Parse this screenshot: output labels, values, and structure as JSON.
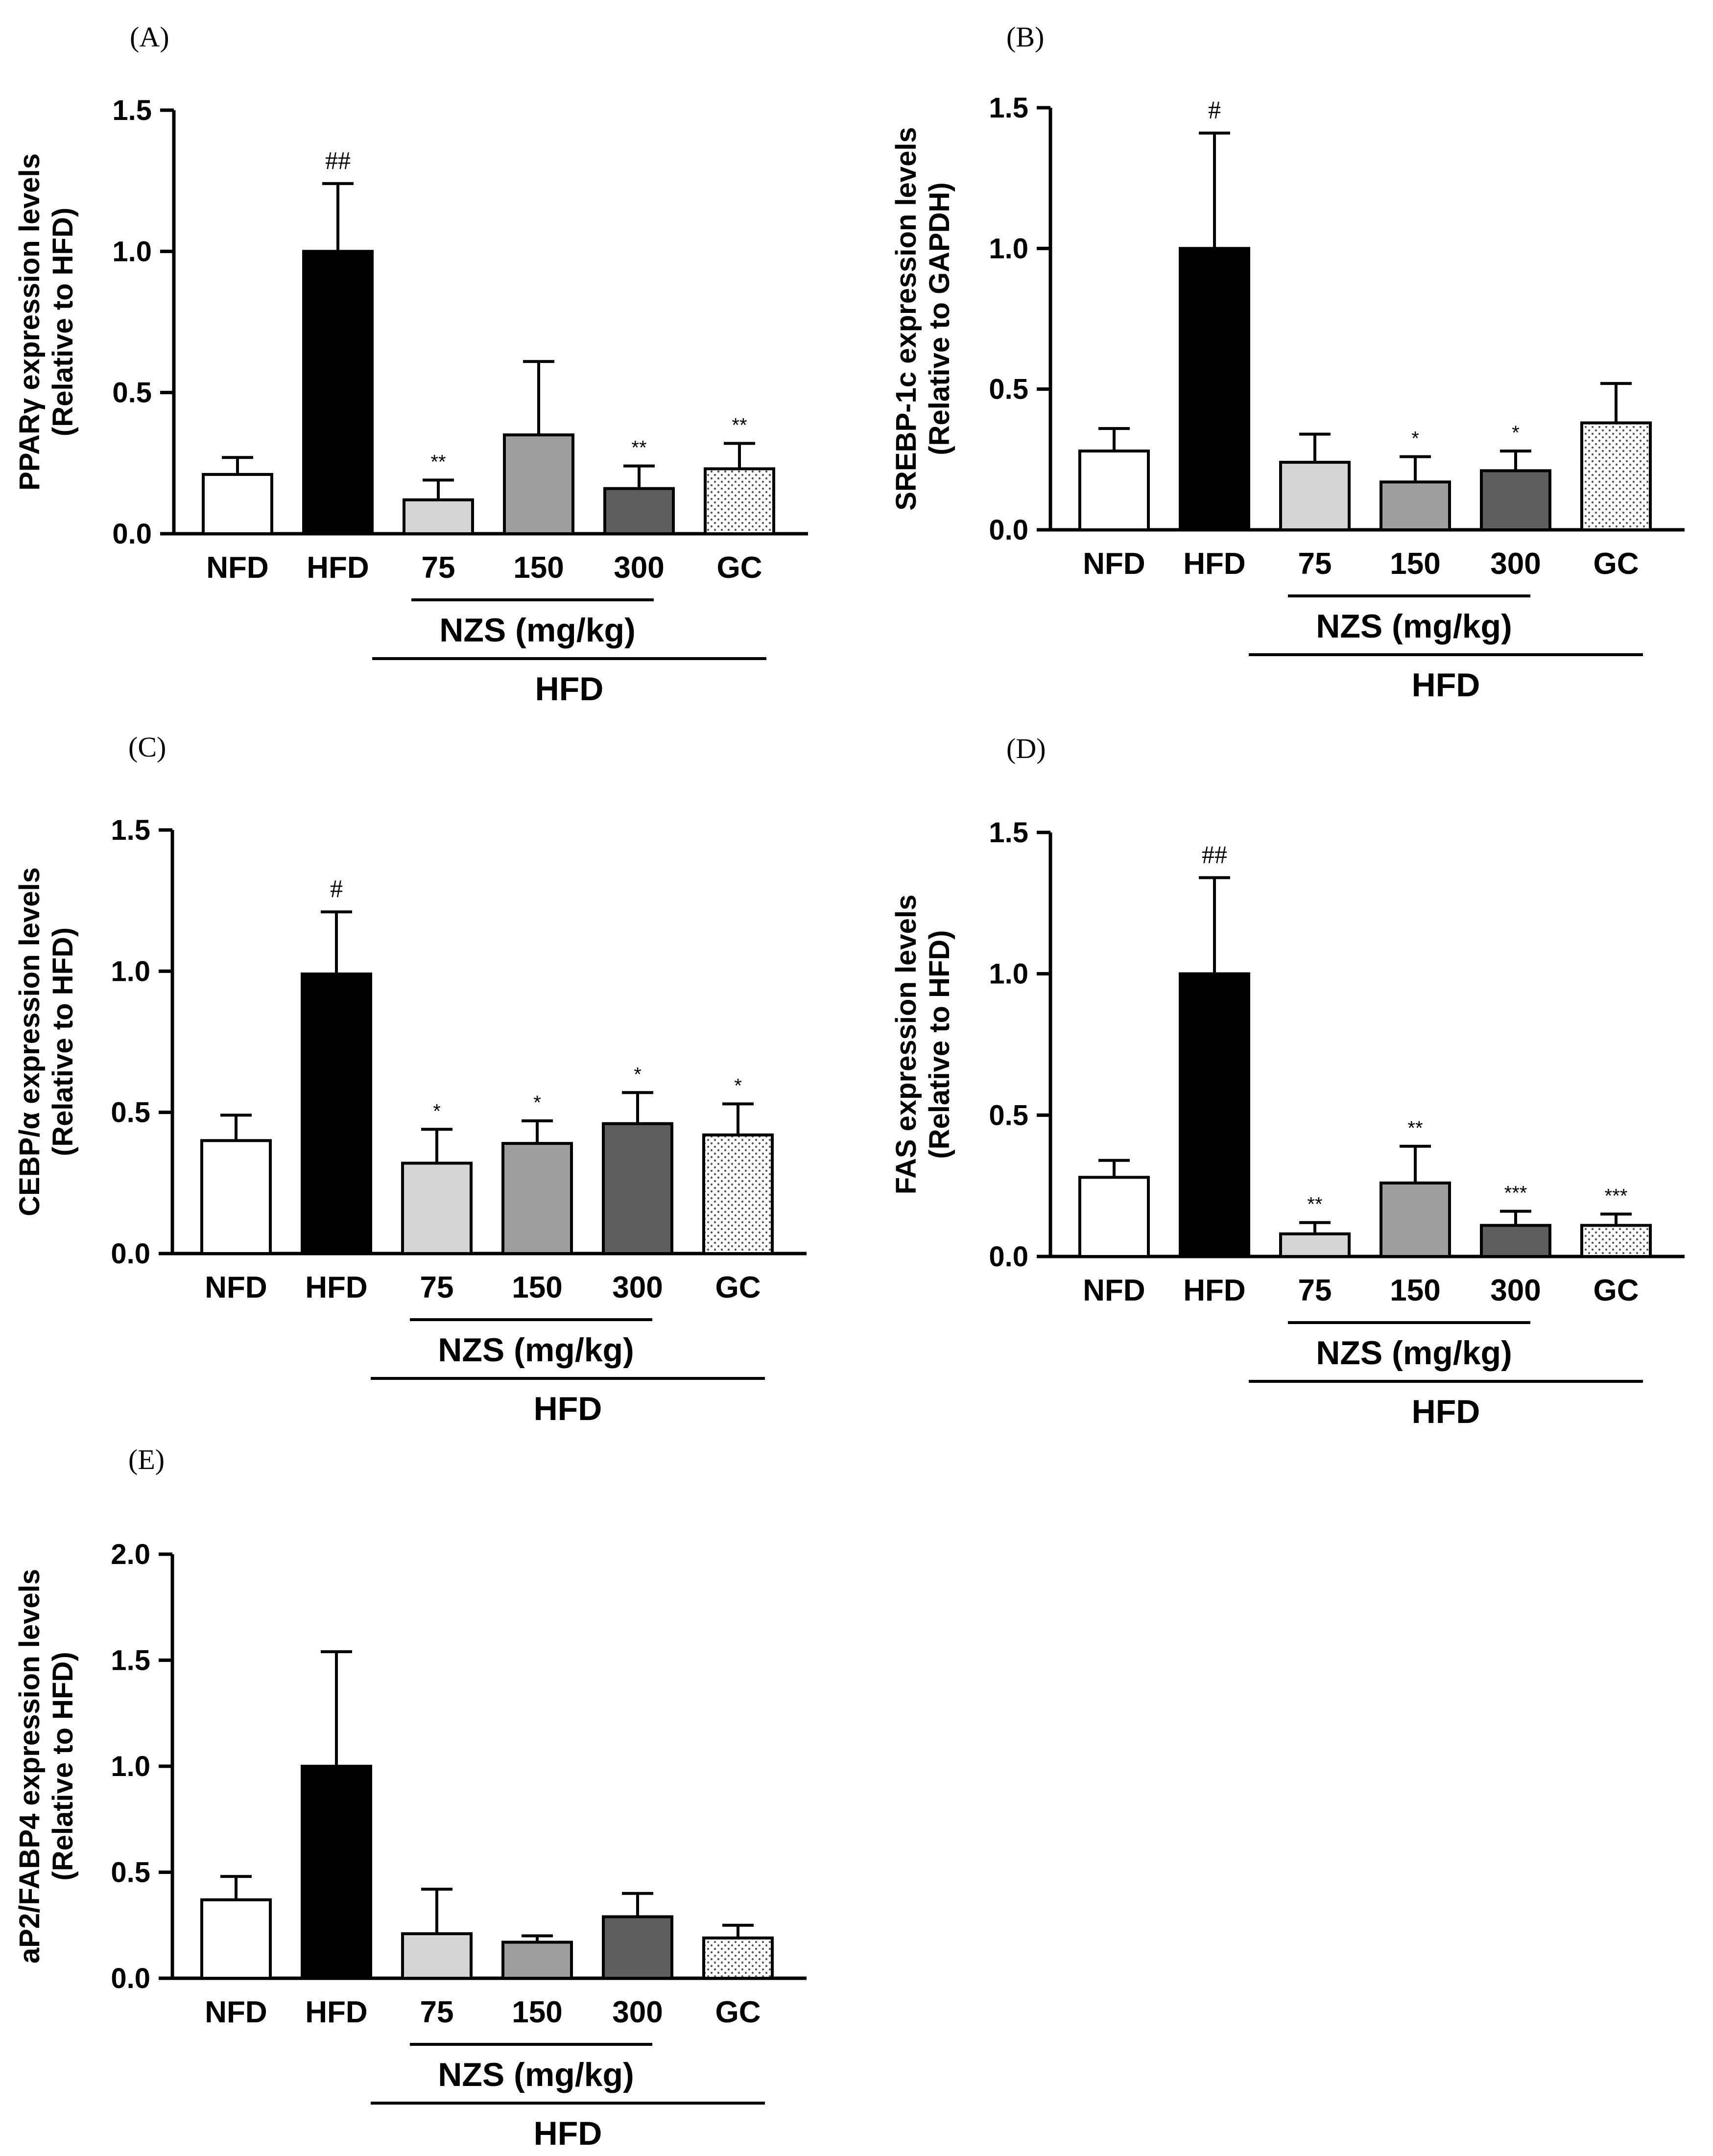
{
  "colors": {
    "NFD": "#ffffff",
    "HFD": "#000000",
    "75": "#d4d4d4",
    "150": "#9e9e9e",
    "300": "#5e5e5e",
    "GC": "dotted"
  },
  "chart_data": [
    {
      "type": "bar",
      "panel": "(A)",
      "ylabel": [
        "PPARγ expression levels",
        "(Relative to HFD)"
      ],
      "categories": [
        "NFD",
        "HFD",
        "75",
        "150",
        "300",
        "GC"
      ],
      "values": [
        0.21,
        1.0,
        0.12,
        0.35,
        0.16,
        0.23
      ],
      "errors": [
        0.06,
        0.24,
        0.07,
        0.26,
        0.08,
        0.09
      ],
      "annotations": [
        "",
        "##",
        "**",
        "",
        "**",
        "**"
      ],
      "ylim": [
        0,
        1.5
      ],
      "yticks": [
        "0.0",
        "0.5",
        "1.0",
        "1.5"
      ],
      "group_label": "NZS (mg/kg)",
      "outer_label": "HFD"
    },
    {
      "type": "bar",
      "panel": "(B)",
      "ylabel": [
        "SREBP-1c expression levels",
        "(Relative to GAPDH)"
      ],
      "categories": [
        "NFD",
        "HFD",
        "75",
        "150",
        "300",
        "GC"
      ],
      "values": [
        0.28,
        1.0,
        0.24,
        0.17,
        0.21,
        0.38
      ],
      "errors": [
        0.08,
        0.41,
        0.1,
        0.09,
        0.07,
        0.14
      ],
      "annotations": [
        "",
        "#",
        "",
        "*",
        "*",
        ""
      ],
      "ylim": [
        0,
        1.5
      ],
      "yticks": [
        "0.0",
        "0.5",
        "1.0",
        "1.5"
      ],
      "group_label": "NZS (mg/kg)",
      "outer_label": "HFD"
    },
    {
      "type": "bar",
      "panel": "(C)",
      "ylabel": [
        "CEBP/α expression levels",
        "(Relative to HFD)"
      ],
      "categories": [
        "NFD",
        "HFD",
        "75",
        "150",
        "300",
        "GC"
      ],
      "values": [
        0.4,
        0.99,
        0.32,
        0.39,
        0.46,
        0.42
      ],
      "errors": [
        0.09,
        0.22,
        0.12,
        0.08,
        0.11,
        0.11
      ],
      "annotations": [
        "",
        "#",
        "*",
        "*",
        "*",
        "*"
      ],
      "ylim": [
        0,
        1.5
      ],
      "yticks": [
        "0.0",
        "0.5",
        "1.0",
        "1.5"
      ],
      "group_label": "NZS (mg/kg)",
      "outer_label": "HFD"
    },
    {
      "type": "bar",
      "panel": "(D)",
      "ylabel": [
        "FAS expression levels",
        "(Relative to HFD)"
      ],
      "categories": [
        "NFD",
        "HFD",
        "75",
        "150",
        "300",
        "GC"
      ],
      "values": [
        0.28,
        1.0,
        0.08,
        0.26,
        0.11,
        0.11
      ],
      "errors": [
        0.06,
        0.34,
        0.04,
        0.13,
        0.05,
        0.04
      ],
      "annotations": [
        "",
        "##",
        "**",
        "**",
        "***",
        "***"
      ],
      "ylim": [
        0,
        1.5
      ],
      "yticks": [
        "0.0",
        "0.5",
        "1.0",
        "1.5"
      ],
      "group_label": "NZS (mg/kg)",
      "outer_label": "HFD"
    },
    {
      "type": "bar",
      "panel": "(E)",
      "ylabel": [
        "aP2/FABP4 expression levels",
        "(Relative to HFD)"
      ],
      "categories": [
        "NFD",
        "HFD",
        "75",
        "150",
        "300",
        "GC"
      ],
      "values": [
        0.37,
        1.0,
        0.21,
        0.17,
        0.29,
        0.19
      ],
      "errors": [
        0.11,
        0.54,
        0.21,
        0.03,
        0.11,
        0.06
      ],
      "annotations": [
        "",
        "",
        "",
        "",
        "",
        ""
      ],
      "ylim": [
        0,
        2.0
      ],
      "yticks": [
        "0.0",
        "0.5",
        "1.0",
        "1.5",
        "2.0"
      ],
      "group_label": "NZS (mg/kg)",
      "outer_label": "HFD"
    }
  ]
}
